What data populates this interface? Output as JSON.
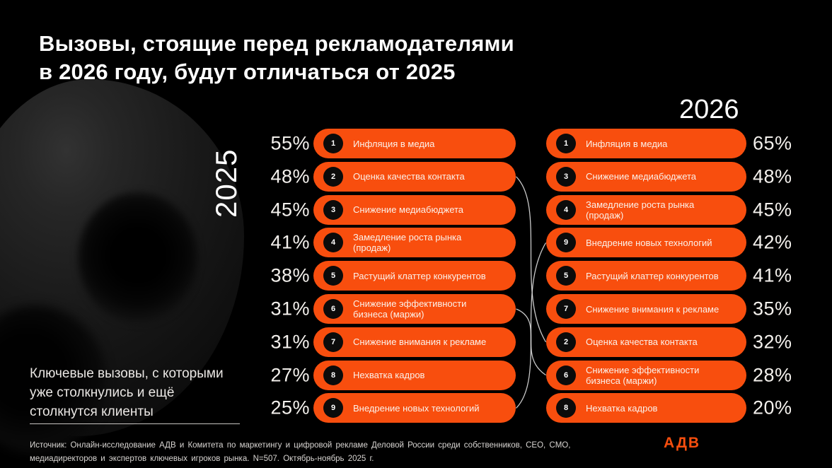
{
  "title": {
    "line1": "Вызовы, стоящие перед рекламодателями",
    "line2": "в 2026 году, будут отличаться от 2025"
  },
  "columns": {
    "left": {
      "year": "2025",
      "items": [
        {
          "rank": "1",
          "label": "Инфляция в медиа",
          "pct": "55%"
        },
        {
          "rank": "2",
          "label": "Оценка качества контакта",
          "pct": "48%"
        },
        {
          "rank": "3",
          "label": "Снижение медиабюджета",
          "pct": "45%"
        },
        {
          "rank": "4",
          "label": "Замедление роста рынка (продаж)",
          "pct": "41%"
        },
        {
          "rank": "5",
          "label": "Растущий клаттер конкурентов",
          "pct": "38%"
        },
        {
          "rank": "6",
          "label": "Снижение эффективности бизнеса (маржи)",
          "pct": "31%"
        },
        {
          "rank": "7",
          "label": "Снижение внимания к рекламе",
          "pct": "31%"
        },
        {
          "rank": "8",
          "label": "Нехватка кадров",
          "pct": "27%"
        },
        {
          "rank": "9",
          "label": "Внедрение новых технологий",
          "pct": "25%"
        }
      ]
    },
    "right": {
      "year": "2026",
      "items": [
        {
          "rank": "1",
          "label": "Инфляция в медиа",
          "pct": "65%"
        },
        {
          "rank": "3",
          "label": "Снижение медиабюджета",
          "pct": "48%"
        },
        {
          "rank": "4",
          "label": "Замедление роста рынка (продаж)",
          "pct": "45%"
        },
        {
          "rank": "9",
          "label": "Внедрение новых технологий",
          "pct": "42%"
        },
        {
          "rank": "5",
          "label": "Растущий клаттер конкурентов",
          "pct": "41%"
        },
        {
          "rank": "7",
          "label": "Снижение внимания к рекламе",
          "pct": "35%"
        },
        {
          "rank": "2",
          "label": "Оценка качества контакта",
          "pct": "32%"
        },
        {
          "rank": "6",
          "label": "Снижение эффективности бизнеса (маржи)",
          "pct": "28%"
        },
        {
          "rank": "8",
          "label": "Нехватка кадров",
          "pct": "20%"
        }
      ]
    }
  },
  "connections": [
    {
      "challenge": "Оценка качества контакта",
      "left_row": 2,
      "right_row": 7
    },
    {
      "challenge": "Снижение эффективности бизнеса (маржи)",
      "left_row": 6,
      "right_row": 8
    },
    {
      "challenge": "Внедрение новых технологий",
      "left_row": 9,
      "right_row": 4
    }
  ],
  "key_note": "Ключевые вызовы, с которыми\nуже столкнулись и ещё\nстолкнутся клиенты",
  "source": "Источник: Онлайн-исследование АДВ и Комитета по маркетингу и цифровой рекламе Деловой России среди собственников, CEO, CMO,\nмедиадиректоров и экспертов ключевых игроков рынка. N=507. Октябрь-ноябрь 2025 г.",
  "footer": {
    "logo": "АДВ"
  },
  "colors": {
    "background": "#000000",
    "accent_orange": "#F84E0E",
    "badge_black": "#0B0B0B",
    "text_white": "#FFFFFF",
    "connector_gray": "#EBEBEB"
  },
  "chart_data": {
    "type": "bar",
    "title": "Вызовы, стоящие перед рекламодателями в 2026 году, будут отличаться от 2025",
    "subtitle": "Ключевые вызовы, с которыми уже столкнулись и ещё столкнутся клиенты",
    "categories": [
      "Инфляция в медиа",
      "Оценка качества контакта",
      "Снижение медиабюджета",
      "Замедление роста рынка (продаж)",
      "Растущий клаттер конкурентов",
      "Снижение эффективности бизнеса (маржи)",
      "Снижение внимания к рекламе",
      "Нехватка кадров",
      "Внедрение новых технологий"
    ],
    "series": [
      {
        "name": "2025",
        "values": [
          55,
          48,
          45,
          41,
          38,
          31,
          31,
          27,
          25
        ]
      },
      {
        "name": "2026",
        "values": [
          65,
          32,
          48,
          45,
          41,
          28,
          35,
          20,
          42
        ]
      }
    ],
    "unit": "%",
    "legend_position": "column headers (2025 left, 2026 right)",
    "grid": false,
    "annotations": "ranked lists; lines connect items that changed rank between years"
  }
}
